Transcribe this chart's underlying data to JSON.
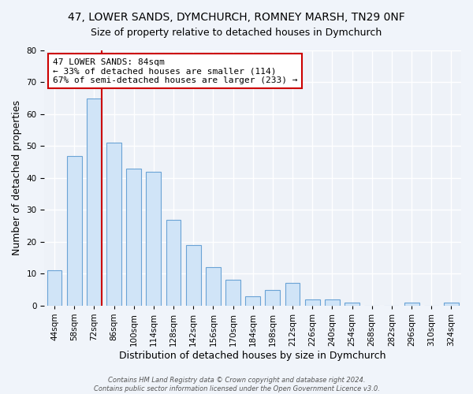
{
  "title": "47, LOWER SANDS, DYMCHURCH, ROMNEY MARSH, TN29 0NF",
  "subtitle": "Size of property relative to detached houses in Dymchurch",
  "xlabel": "Distribution of detached houses by size in Dymchurch",
  "ylabel": "Number of detached properties",
  "bar_labels": [
    "44sqm",
    "58sqm",
    "72sqm",
    "86sqm",
    "100sqm",
    "114sqm",
    "128sqm",
    "142sqm",
    "156sqm",
    "170sqm",
    "184sqm",
    "198sqm",
    "212sqm",
    "226sqm",
    "240sqm",
    "254sqm",
    "268sqm",
    "282sqm",
    "296sqm",
    "310sqm",
    "324sqm"
  ],
  "bar_values": [
    11,
    47,
    65,
    51,
    43,
    42,
    27,
    19,
    12,
    8,
    3,
    5,
    7,
    2,
    2,
    1,
    0,
    0,
    1,
    0,
    1
  ],
  "bar_color": "#d0e4f7",
  "bar_edge_color": "#6aa3d5",
  "reference_line_color": "#cc0000",
  "annotation_title": "47 LOWER SANDS: 84sqm",
  "annotation_line1": "← 33% of detached houses are smaller (114)",
  "annotation_line2": "67% of semi-detached houses are larger (233) →",
  "annotation_box_color": "#ffffff",
  "annotation_box_edge": "#cc0000",
  "ylim": [
    0,
    80
  ],
  "yticks": [
    0,
    10,
    20,
    30,
    40,
    50,
    60,
    70,
    80
  ],
  "bg_color": "#f0f4fa",
  "plot_bg_color": "#eef2f8",
  "footer_line1": "Contains HM Land Registry data © Crown copyright and database right 2024.",
  "footer_line2": "Contains public sector information licensed under the Open Government Licence v3.0.",
  "title_fontsize": 10,
  "axis_label_fontsize": 9,
  "tick_fontsize": 7.5
}
